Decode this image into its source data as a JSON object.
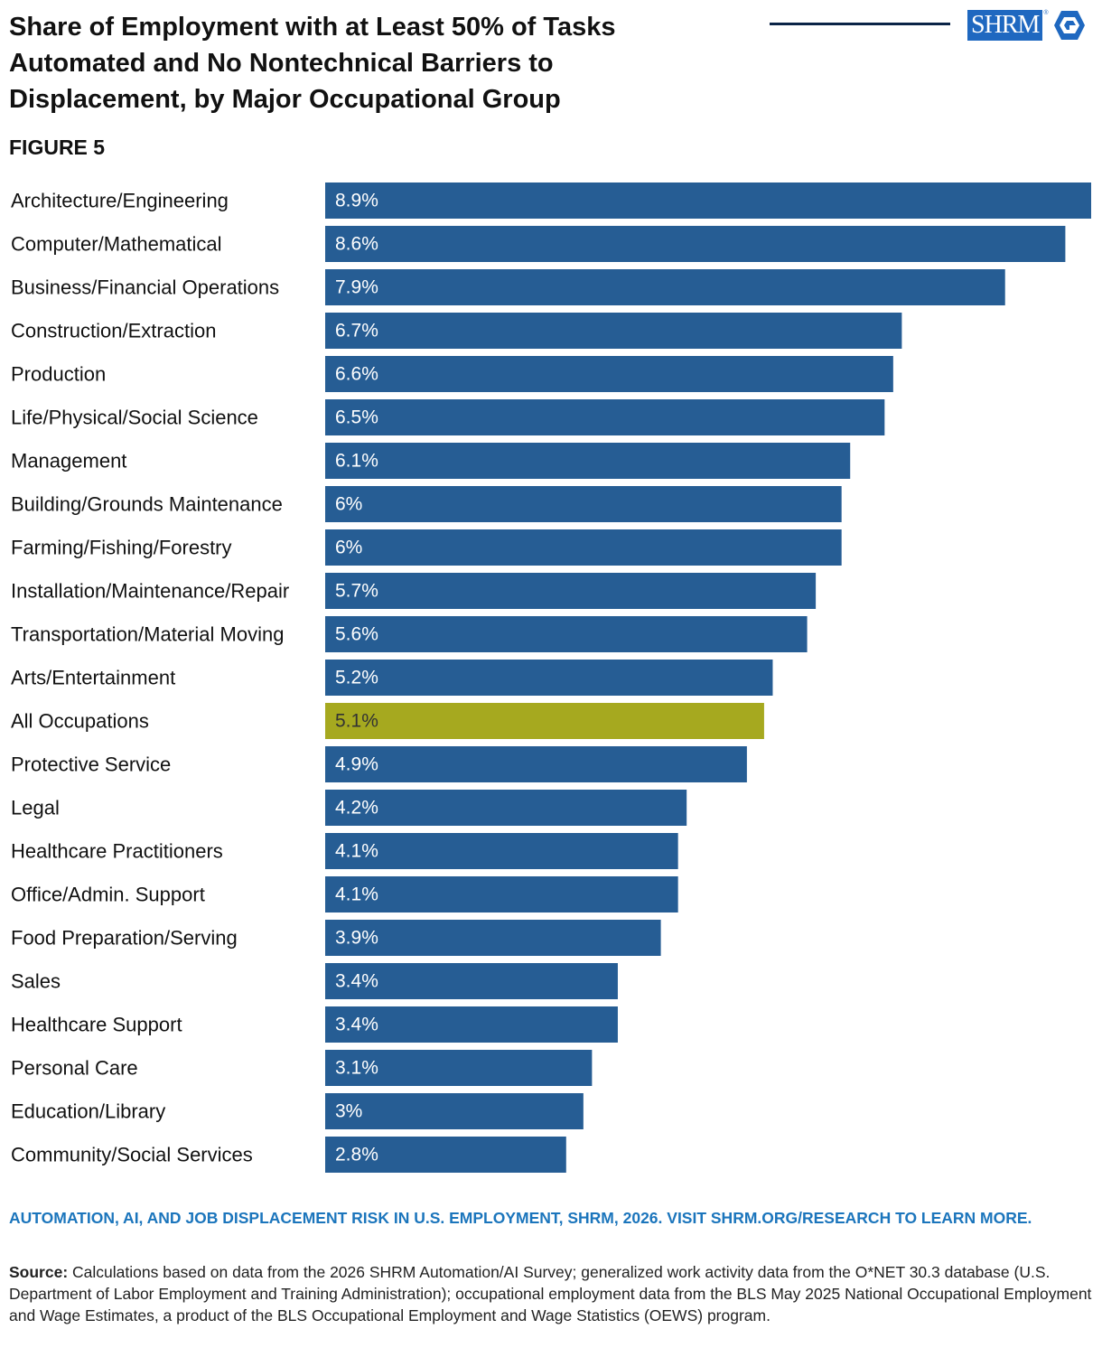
{
  "header": {
    "title": "Share of Employment with at Least 50% of Tasks Automated and No Nontechnical Barriers to Displacement, by Major Occupational Group",
    "figure_label": "FIGURE 5",
    "logo_text": "SHRM",
    "logo_registered": "®"
  },
  "colors": {
    "bar": "#265d94",
    "highlight_bar": "#a6a91f",
    "bar_label": "#ffffff",
    "highlight_label": "#333333",
    "accent": "#1b75bc"
  },
  "chart_data": {
    "type": "bar",
    "orientation": "horizontal",
    "categories": [
      "Architecture/Engineering",
      "Computer/Mathematical",
      "Business/Financial Operations",
      "Construction/Extraction",
      "Production",
      "Life/Physical/Social Science",
      "Management",
      "Building/Grounds Maintenance",
      "Farming/Fishing/Forestry",
      "Installation/Maintenance/Repair",
      "Transportation/Material Moving",
      "Arts/Entertainment",
      "All Occupations",
      "Protective Service",
      "Legal",
      "Healthcare Practitioners",
      "Office/Admin. Support",
      "Food Preparation/Serving",
      "Sales",
      "Healthcare Support",
      "Personal Care",
      "Education/Library",
      "Community/Social Services"
    ],
    "values": [
      8.9,
      8.6,
      7.9,
      6.7,
      6.6,
      6.5,
      6.1,
      6.0,
      6.0,
      5.7,
      5.6,
      5.2,
      5.1,
      4.9,
      4.2,
      4.1,
      4.1,
      3.9,
      3.4,
      3.4,
      3.1,
      3.0,
      2.8
    ],
    "value_labels": [
      "8.9%",
      "8.6%",
      "7.9%",
      "6.7%",
      "6.6%",
      "6.5%",
      "6.1%",
      "6%",
      "6%",
      "5.7%",
      "5.6%",
      "5.2%",
      "5.1%",
      "4.9%",
      "4.2%",
      "4.1%",
      "4.1%",
      "3.9%",
      "3.4%",
      "3.4%",
      "3.1%",
      "3%",
      "2.8%"
    ],
    "highlight_category": "All Occupations",
    "title": "Share of Employment with at Least 50% of Tasks Automated and No Nontechnical Barriers to Displacement, by Major Occupational Group",
    "xlabel": "",
    "ylabel": "",
    "xlim": [
      0,
      8.9
    ],
    "grid": false,
    "legend": "none"
  },
  "footer": {
    "cta": "AUTOMATION, AI, AND JOB DISPLACEMENT RISK IN U.S. EMPLOYMENT, SHRM, 2026. VISIT SHRM.ORG/RESEARCH TO LEARN MORE.",
    "source_label": "Source:",
    "source_text": "Calculations based on data from the 2026 SHRM Automation/AI Survey; generalized work activity data from the O*NET 30.3 database (U.S. Department of Labor Employment and Training Administration); occupational employment data from the BLS May 2025 National Occupational Employment and Wage Estimates, a product of the BLS Occupational Employment and Wage Statistics (OEWS) program."
  }
}
